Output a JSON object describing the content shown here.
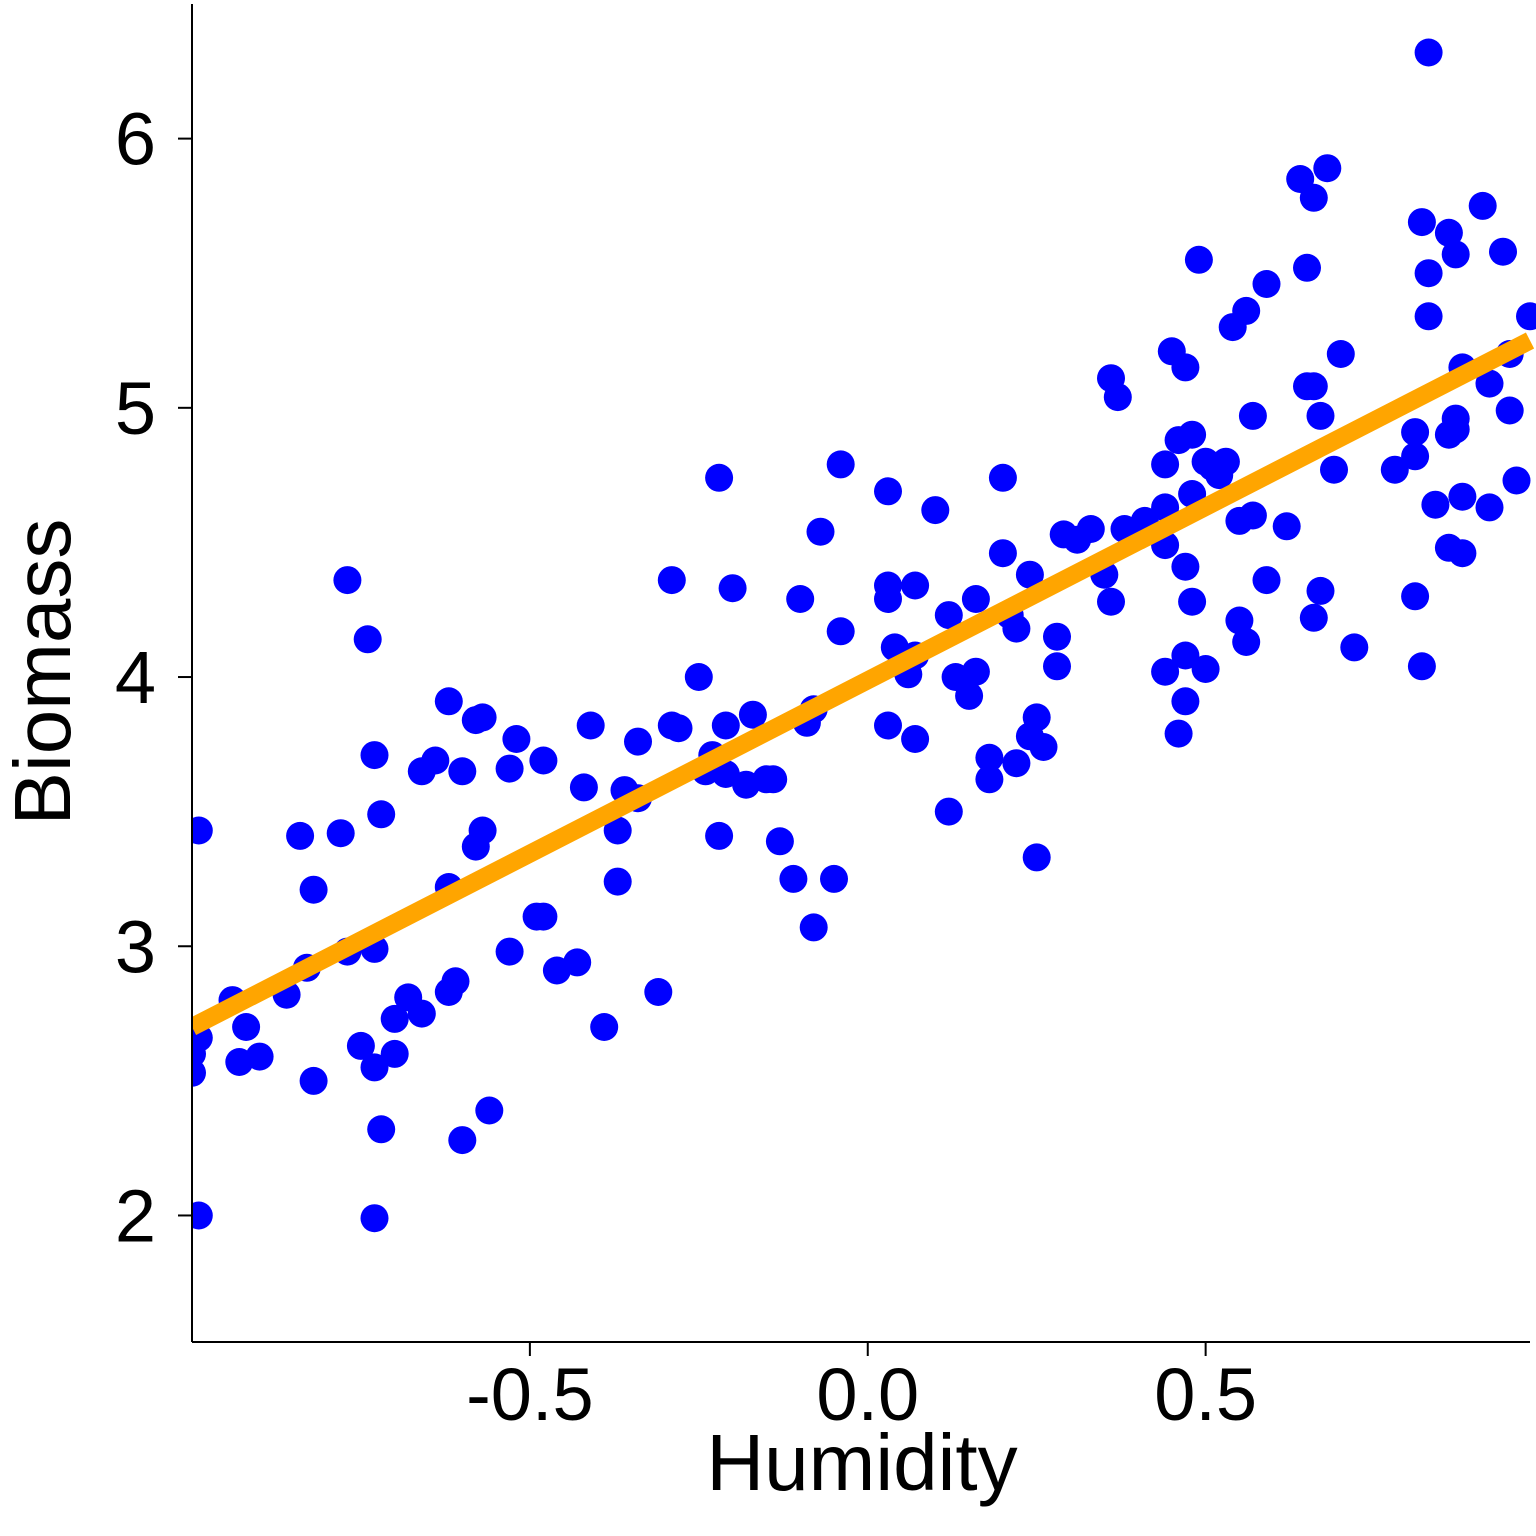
{
  "chart_data": {
    "type": "scatter",
    "xlabel": "Humidity",
    "ylabel": "Biomass",
    "xlim": [
      -1.0,
      0.98
    ],
    "ylim": [
      1.53,
      6.5
    ],
    "x_ticks": [
      -0.5,
      0.0,
      0.5
    ],
    "x_tick_labels": [
      "-0.5",
      "0.0",
      "0.5"
    ],
    "y_ticks": [
      2,
      3,
      4,
      5,
      6
    ],
    "y_tick_labels": [
      "2",
      "3",
      "4",
      "5",
      "6"
    ],
    "grid": false,
    "legend": "none",
    "colors": {
      "points": "#0000ff",
      "fit_line": "#ffa500",
      "axes": "#000000"
    },
    "series": [
      {
        "values": [
          [
            -0.99,
            3.43
          ],
          [
            -0.99,
            2.0
          ],
          [
            -0.99,
            2.66
          ],
          [
            -1.0,
            2.53
          ],
          [
            -1.0,
            2.6
          ],
          [
            -0.94,
            2.8
          ],
          [
            -0.93,
            2.57
          ],
          [
            -0.92,
            2.7
          ],
          [
            -0.9,
            2.59
          ],
          [
            -0.86,
            2.82
          ],
          [
            -0.84,
            3.41
          ],
          [
            -0.83,
            2.92
          ],
          [
            -0.82,
            2.5
          ],
          [
            -0.82,
            3.21
          ],
          [
            -0.78,
            3.42
          ],
          [
            -0.77,
            2.98
          ],
          [
            -0.77,
            4.36
          ],
          [
            -0.75,
            2.63
          ],
          [
            -0.74,
            4.14
          ],
          [
            -0.73,
            1.99
          ],
          [
            -0.73,
            2.55
          ],
          [
            -0.73,
            2.99
          ],
          [
            -0.73,
            3.71
          ],
          [
            -0.72,
            2.32
          ],
          [
            -0.72,
            3.49
          ],
          [
            -0.7,
            2.73
          ],
          [
            -0.7,
            2.6
          ],
          [
            -0.68,
            2.81
          ],
          [
            -0.66,
            3.65
          ],
          [
            -0.66,
            2.75
          ],
          [
            -0.64,
            3.69
          ],
          [
            -0.62,
            3.22
          ],
          [
            -0.62,
            2.83
          ],
          [
            -0.62,
            3.91
          ],
          [
            -0.61,
            2.87
          ],
          [
            -0.6,
            3.65
          ],
          [
            -0.6,
            2.28
          ],
          [
            -0.58,
            3.37
          ],
          [
            -0.58,
            3.84
          ],
          [
            -0.57,
            3.43
          ],
          [
            -0.57,
            3.85
          ],
          [
            -0.56,
            2.39
          ],
          [
            -0.53,
            3.66
          ],
          [
            -0.53,
            2.98
          ],
          [
            -0.52,
            3.77
          ],
          [
            -0.49,
            3.11
          ],
          [
            -0.48,
            3.11
          ],
          [
            -0.48,
            3.69
          ],
          [
            -0.46,
            2.91
          ],
          [
            -0.43,
            2.94
          ],
          [
            -0.42,
            3.59
          ],
          [
            -0.41,
            3.82
          ],
          [
            -0.39,
            2.7
          ],
          [
            -0.37,
            3.43
          ],
          [
            -0.37,
            3.24
          ],
          [
            -0.36,
            3.58
          ],
          [
            -0.34,
            3.55
          ],
          [
            -0.34,
            3.76
          ],
          [
            -0.31,
            2.83
          ],
          [
            -0.29,
            3.82
          ],
          [
            -0.29,
            4.36
          ],
          [
            -0.28,
            3.81
          ],
          [
            -0.25,
            4.0
          ],
          [
            -0.24,
            3.65
          ],
          [
            -0.23,
            3.71
          ],
          [
            -0.22,
            4.74
          ],
          [
            -0.22,
            3.41
          ],
          [
            -0.21,
            3.82
          ],
          [
            -0.21,
            3.64
          ],
          [
            -0.2,
            4.33
          ],
          [
            -0.18,
            3.6
          ],
          [
            -0.17,
            3.86
          ],
          [
            -0.15,
            3.62
          ],
          [
            -0.14,
            3.62
          ],
          [
            -0.13,
            3.39
          ],
          [
            -0.11,
            3.25
          ],
          [
            -0.1,
            4.29
          ],
          [
            -0.09,
            3.83
          ],
          [
            -0.08,
            3.88
          ],
          [
            -0.08,
            3.07
          ],
          [
            -0.07,
            4.54
          ],
          [
            -0.05,
            3.25
          ],
          [
            -0.04,
            4.79
          ],
          [
            -0.04,
            4.17
          ],
          [
            0.03,
            4.69
          ],
          [
            0.03,
            4.29
          ],
          [
            0.03,
            4.34
          ],
          [
            0.03,
            3.82
          ],
          [
            0.04,
            4.11
          ],
          [
            0.06,
            4.01
          ],
          [
            0.07,
            4.34
          ],
          [
            0.07,
            3.77
          ],
          [
            0.07,
            4.08
          ],
          [
            0.1,
            4.62
          ],
          [
            0.12,
            3.5
          ],
          [
            0.12,
            4.23
          ],
          [
            0.13,
            4.0
          ],
          [
            0.15,
            3.93
          ],
          [
            0.16,
            4.02
          ],
          [
            0.16,
            4.29
          ],
          [
            0.18,
            3.7
          ],
          [
            0.18,
            3.62
          ],
          [
            0.2,
            4.46
          ],
          [
            0.2,
            4.74
          ],
          [
            0.21,
            4.23
          ],
          [
            0.22,
            3.68
          ],
          [
            0.22,
            4.18
          ],
          [
            0.24,
            4.38
          ],
          [
            0.24,
            3.78
          ],
          [
            0.25,
            3.85
          ],
          [
            0.25,
            3.33
          ],
          [
            0.26,
            3.74
          ],
          [
            0.28,
            4.04
          ],
          [
            0.28,
            4.15
          ],
          [
            0.29,
            4.53
          ],
          [
            0.31,
            4.51
          ],
          [
            0.33,
            4.55
          ],
          [
            0.35,
            4.38
          ],
          [
            0.36,
            5.11
          ],
          [
            0.36,
            4.28
          ],
          [
            0.37,
            5.04
          ],
          [
            0.38,
            4.55
          ],
          [
            0.41,
            4.58
          ],
          [
            0.44,
            4.49
          ],
          [
            0.44,
            4.02
          ],
          [
            0.44,
            4.63
          ],
          [
            0.44,
            4.79
          ],
          [
            0.45,
            5.21
          ],
          [
            0.46,
            4.88
          ],
          [
            0.46,
            3.79
          ],
          [
            0.47,
            3.91
          ],
          [
            0.47,
            5.15
          ],
          [
            0.47,
            4.08
          ],
          [
            0.47,
            4.41
          ],
          [
            0.48,
            4.28
          ],
          [
            0.48,
            4.9
          ],
          [
            0.48,
            4.68
          ],
          [
            0.49,
            5.55
          ],
          [
            0.5,
            4.8
          ],
          [
            0.5,
            4.03
          ],
          [
            0.51,
            4.78
          ],
          [
            0.52,
            4.75
          ],
          [
            0.53,
            4.8
          ],
          [
            0.54,
            5.3
          ],
          [
            0.55,
            4.58
          ],
          [
            0.55,
            4.21
          ],
          [
            0.56,
            5.36
          ],
          [
            0.56,
            4.13
          ],
          [
            0.57,
            4.97
          ],
          [
            0.57,
            4.6
          ],
          [
            0.59,
            4.36
          ],
          [
            0.59,
            5.46
          ],
          [
            0.62,
            4.56
          ],
          [
            0.64,
            5.85
          ],
          [
            0.65,
            5.52
          ],
          [
            0.65,
            5.08
          ],
          [
            0.66,
            5.08
          ],
          [
            0.66,
            4.22
          ],
          [
            0.66,
            5.78
          ],
          [
            0.67,
            4.32
          ],
          [
            0.67,
            4.97
          ],
          [
            0.68,
            5.89
          ],
          [
            0.69,
            4.77
          ],
          [
            0.7,
            5.2
          ],
          [
            0.72,
            4.11
          ],
          [
            0.78,
            4.77
          ],
          [
            0.81,
            4.91
          ],
          [
            0.81,
            4.82
          ],
          [
            0.81,
            4.3
          ],
          [
            0.82,
            4.04
          ],
          [
            0.82,
            5.69
          ],
          [
            0.83,
            5.5
          ],
          [
            0.83,
            5.34
          ],
          [
            0.83,
            6.32
          ],
          [
            0.84,
            4.64
          ],
          [
            0.86,
            4.48
          ],
          [
            0.86,
            4.9
          ],
          [
            0.86,
            5.65
          ],
          [
            0.87,
            5.57
          ],
          [
            0.87,
            4.96
          ],
          [
            0.87,
            4.92
          ],
          [
            0.88,
            4.46
          ],
          [
            0.88,
            5.15
          ],
          [
            0.88,
            4.67
          ],
          [
            0.91,
            5.75
          ],
          [
            0.92,
            5.09
          ],
          [
            0.92,
            4.63
          ],
          [
            0.94,
            5.58
          ],
          [
            0.95,
            5.2
          ],
          [
            0.95,
            4.99
          ],
          [
            0.96,
            4.73
          ],
          [
            0.98,
            5.34
          ]
        ]
      }
    ],
    "fit_line": [
      [
        -1.0,
        2.7
      ],
      [
        0.98,
        5.25
      ]
    ]
  }
}
